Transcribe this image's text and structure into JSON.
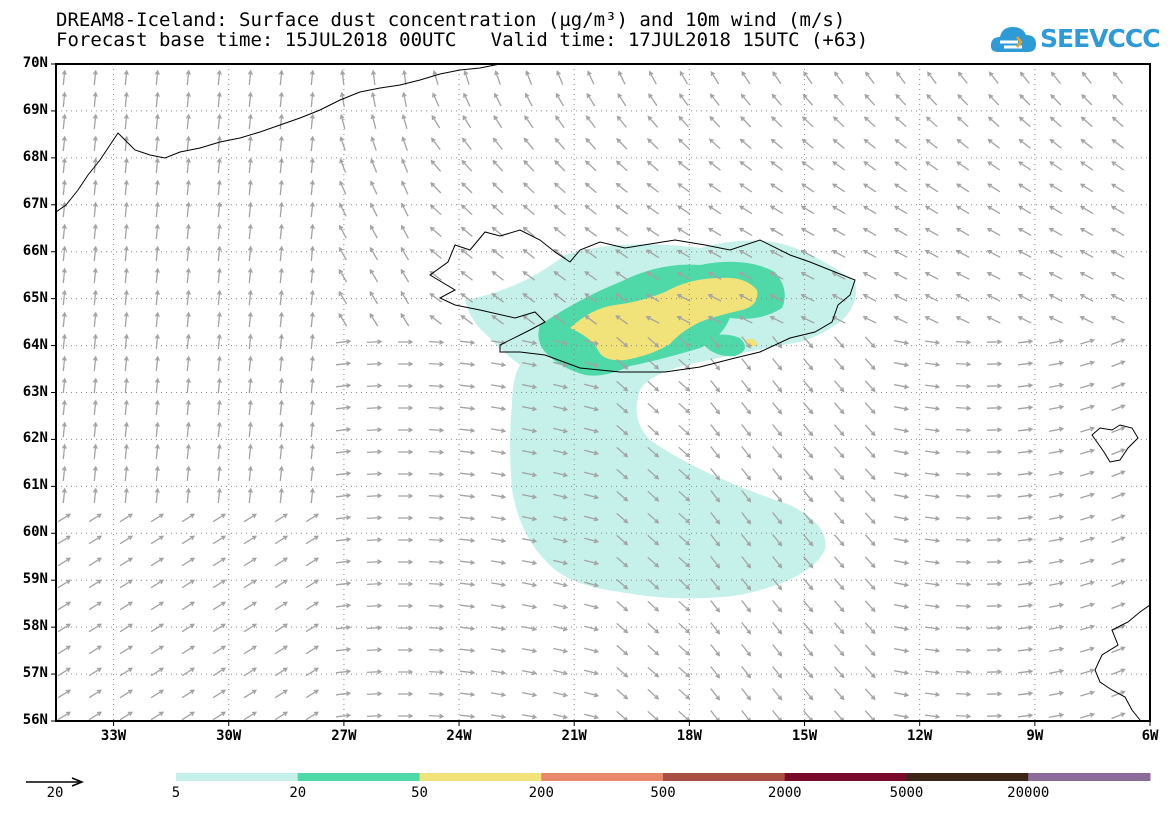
{
  "header": {
    "title_line1": "DREAM8-Iceland: Surface dust concentration (µg/m³) and 10m wind (m/s)",
    "title_line2": "Forecast base time: 15JUL2018 00UTC   Valid time: 17JUL2018 15UTC (+63)"
  },
  "logo": {
    "text": "SEEVCCC",
    "icon": "cloud-icon"
  },
  "axes": {
    "lat_labels": [
      "70N",
      "69N",
      "68N",
      "67N",
      "66N",
      "65N",
      "64N",
      "63N",
      "62N",
      "61N",
      "60N",
      "59N",
      "58N",
      "57N",
      "56N"
    ],
    "lon_labels": [
      "33W",
      "30W",
      "27W",
      "24W",
      "21W",
      "18W",
      "15W",
      "12W",
      "9W",
      "6W"
    ],
    "lat_range": [
      56,
      70
    ],
    "lon_range": [
      -34.5,
      -6
    ],
    "grid": "dotted"
  },
  "legend": {
    "wind_reference": {
      "label": "20",
      "icon": "arrow-icon"
    },
    "colorbar": {
      "labels": [
        "5",
        "20",
        "50",
        "200",
        "500",
        "2000",
        "5000",
        "20000"
      ],
      "colors": [
        "#c6f1ea",
        "#4fd8a8",
        "#f2e27a",
        "#e8876a",
        "#a94f43",
        "#7a0b2a",
        "#3b2517",
        "#8c6b9b"
      ]
    }
  },
  "colors": {
    "wind_arrow": "#a3a3a3",
    "coastline": "#000000",
    "grid": "#888888"
  }
}
